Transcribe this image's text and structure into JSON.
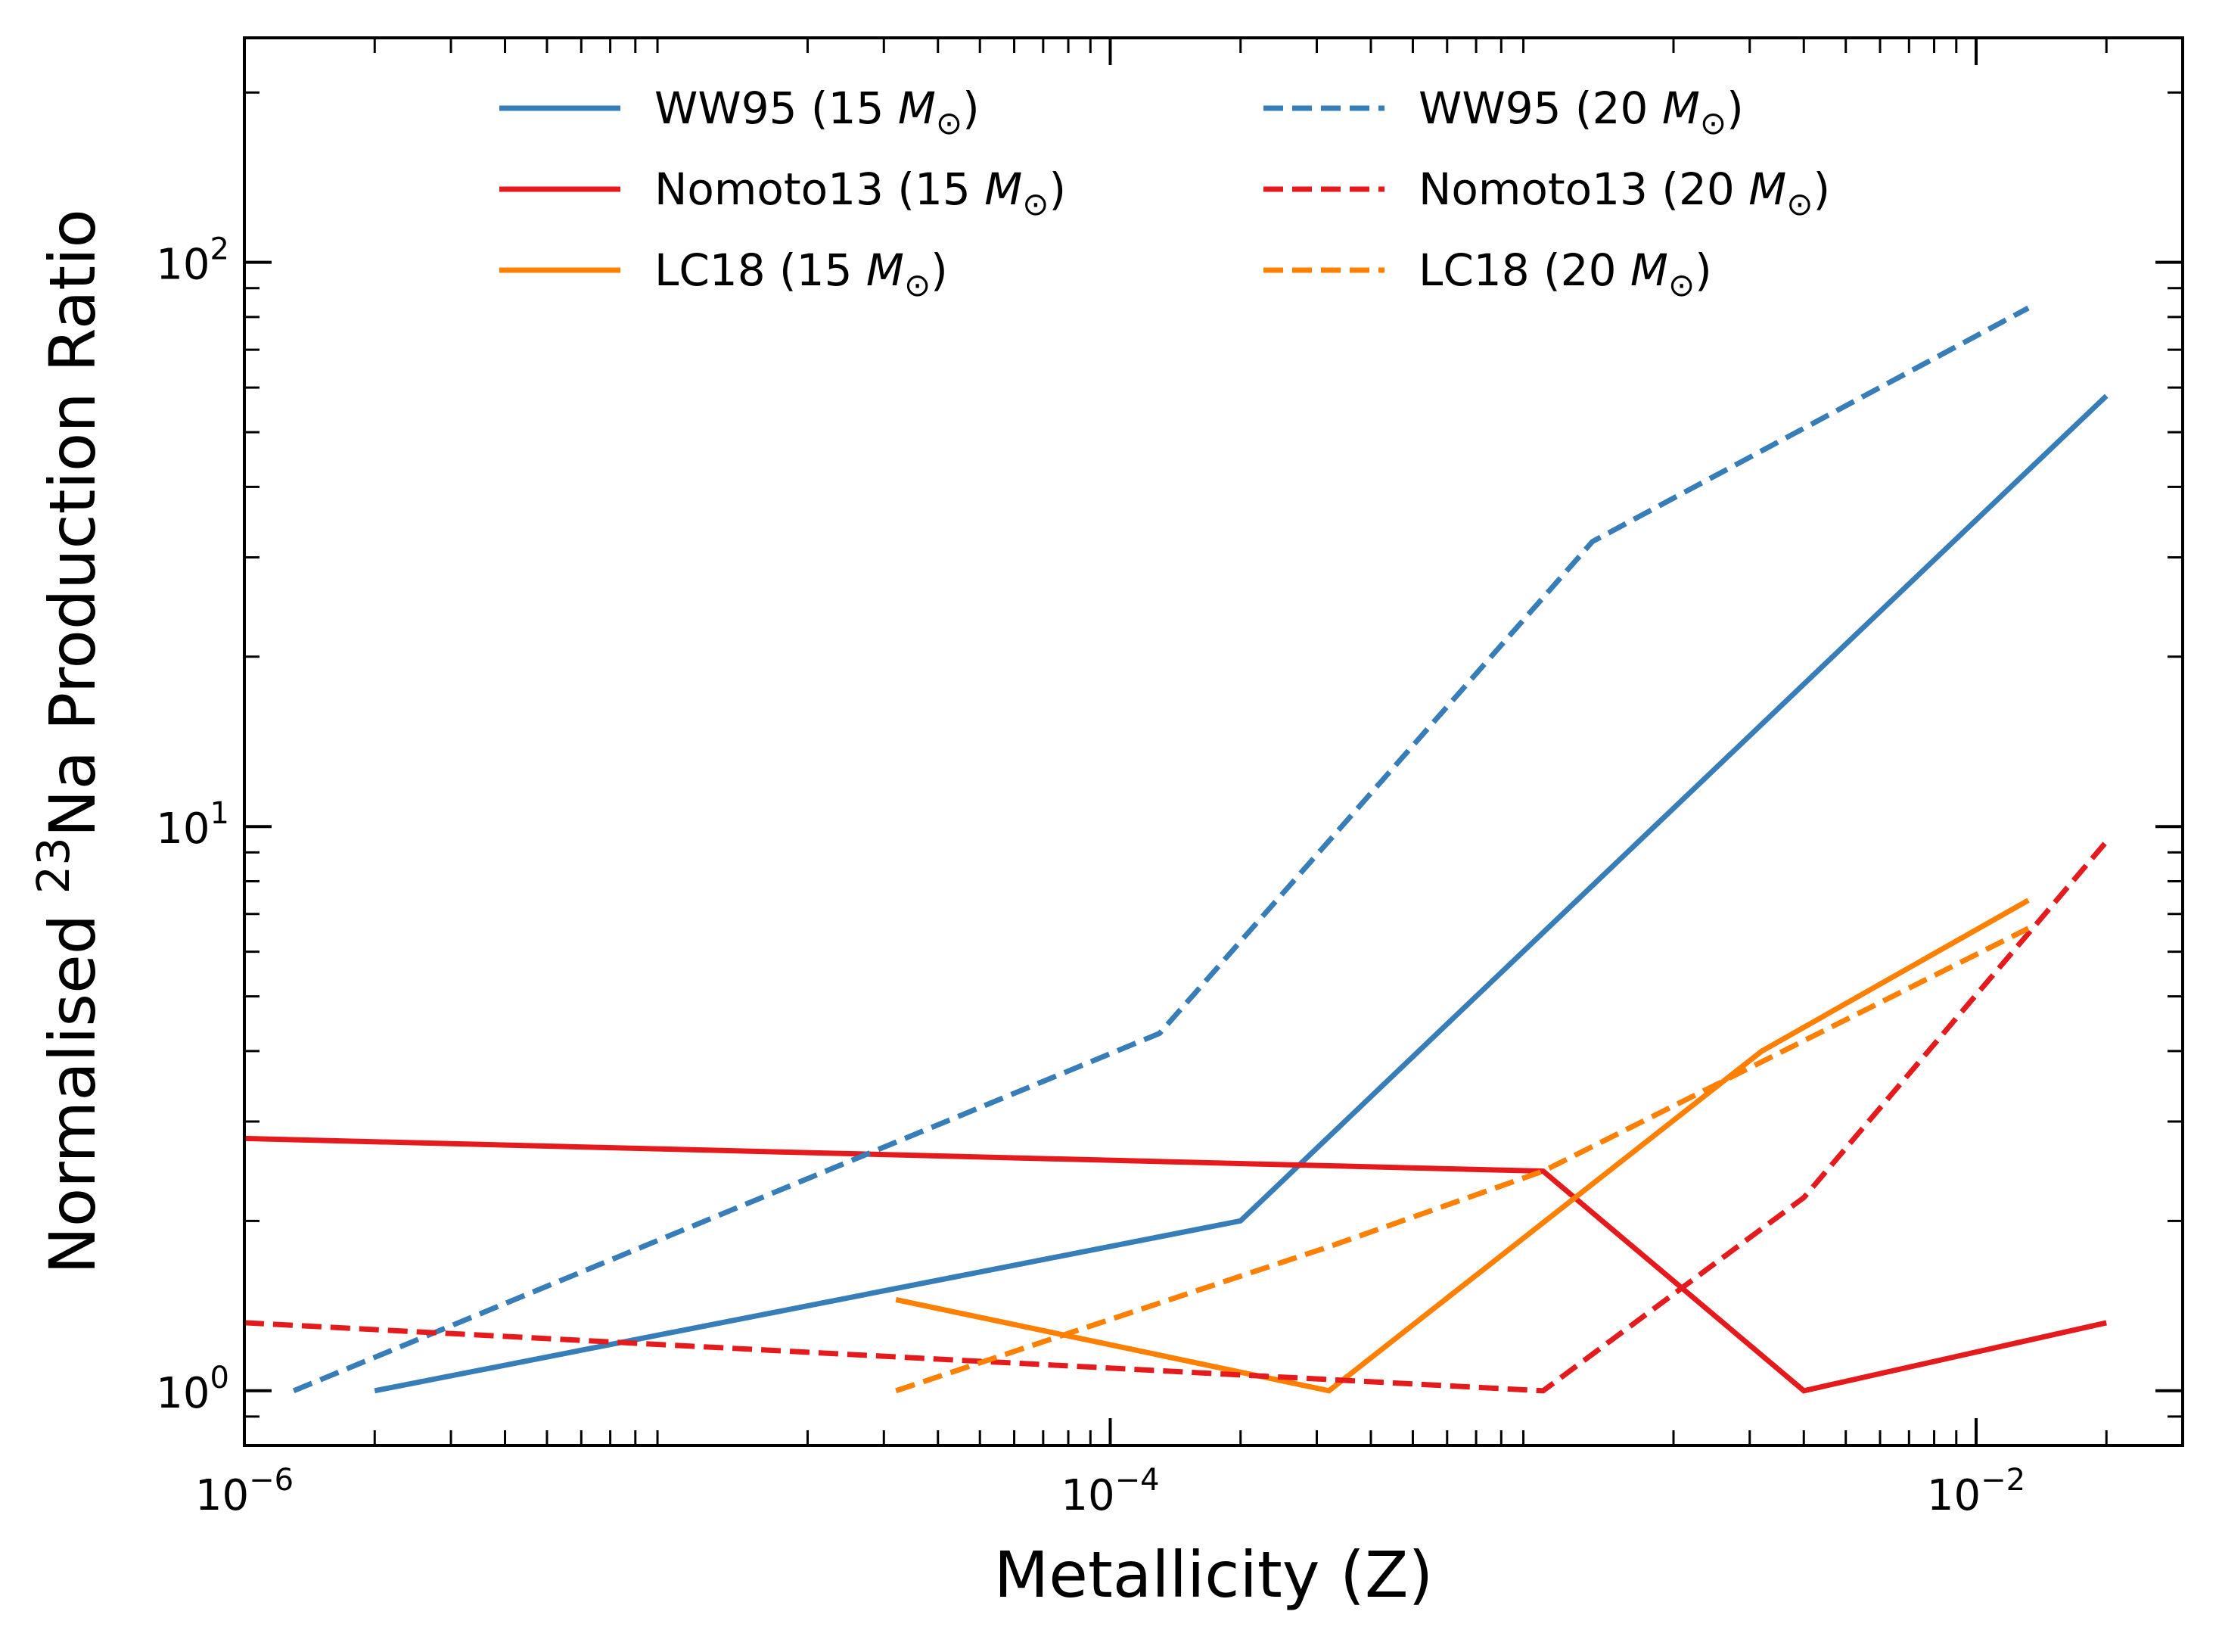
{
  "chart_data": {
    "type": "line",
    "xlabel": "Metallicity (Z)",
    "ylabel_parts": {
      "prefix": "Normalised ",
      "sup": "23",
      "suffix": "Na Production Ratio"
    },
    "xscale": "log",
    "yscale": "log",
    "xlim": [
      1e-06,
      0.03
    ],
    "ylim": [
      0.8,
      250
    ],
    "x_ticks": [
      {
        "value": 1e-06,
        "base": "10",
        "exp": "−6"
      },
      {
        "value": 0.0001,
        "base": "10",
        "exp": "−4"
      },
      {
        "value": 0.01,
        "base": "10",
        "exp": "−2"
      }
    ],
    "y_ticks": [
      {
        "value": 1,
        "base": "10",
        "exp": "0"
      },
      {
        "value": 10,
        "base": "10",
        "exp": "1"
      },
      {
        "value": 100,
        "base": "10",
        "exp": "2"
      }
    ],
    "legend_placement": "top-center, two columns",
    "series": [
      {
        "name": "WW95 (15 M☉)",
        "label": {
          "text": "WW95 (15 ",
          "sym": "M",
          "sub": "⊙",
          "close": ")"
        },
        "color": "#377eb8",
        "dash": "solid",
        "legend_col": 0,
        "legend_row": 0,
        "x": [
          2e-06,
          0.0002,
          0.02
        ],
        "y": [
          1.0,
          2.0,
          58.0
        ]
      },
      {
        "name": "Nomoto13 (15 M☉)",
        "label": {
          "text": "Nomoto13 (15 ",
          "sym": "M",
          "sub": "⊙",
          "close": ")"
        },
        "color": "#e41a1c",
        "dash": "solid",
        "legend_col": 0,
        "legend_row": 1,
        "x": [
          1e-06,
          0.001,
          0.004,
          0.02
        ],
        "y": [
          2.8,
          2.45,
          1.0,
          1.32
        ]
      },
      {
        "name": "LC18 (15 M☉)",
        "label": {
          "text": "LC18 (15 ",
          "sym": "M",
          "sub": "⊙",
          "close": ")"
        },
        "color": "#ff7f00",
        "dash": "solid",
        "legend_col": 0,
        "legend_row": 2,
        "x": [
          3.2e-05,
          0.00032,
          0.0032,
          0.0132
        ],
        "y": [
          1.45,
          1.0,
          4.0,
          7.4
        ]
      },
      {
        "name": "WW95 (20 M☉)",
        "label": {
          "text": "WW95 (20 ",
          "sym": "M",
          "sub": "⊙",
          "close": ")"
        },
        "color": "#377eb8",
        "dash": "dashed",
        "legend_col": 1,
        "legend_row": 0,
        "x": [
          1.3e-06,
          0.00013,
          0.0013,
          0.0132
        ],
        "y": [
          1.0,
          4.3,
          32.0,
          83.0
        ]
      },
      {
        "name": "Nomoto13 (20 M☉)",
        "label": {
          "text": "Nomoto13 (20 ",
          "sym": "M",
          "sub": "⊙",
          "close": ")"
        },
        "color": "#e41a1c",
        "dash": "dashed",
        "legend_col": 1,
        "legend_row": 1,
        "x": [
          1e-06,
          0.001,
          0.004,
          0.02
        ],
        "y": [
          1.32,
          1.0,
          2.2,
          9.4
        ]
      },
      {
        "name": "LC18 (20 M☉)",
        "label": {
          "text": "LC18 (20 ",
          "sym": "M",
          "sub": "⊙",
          "close": ")"
        },
        "color": "#ff7f00",
        "dash": "dashed",
        "legend_col": 1,
        "legend_row": 2,
        "x": [
          3.2e-05,
          0.00032,
          0.001,
          0.0132
        ],
        "y": [
          1.0,
          1.8,
          2.45,
          6.6
        ]
      }
    ]
  }
}
